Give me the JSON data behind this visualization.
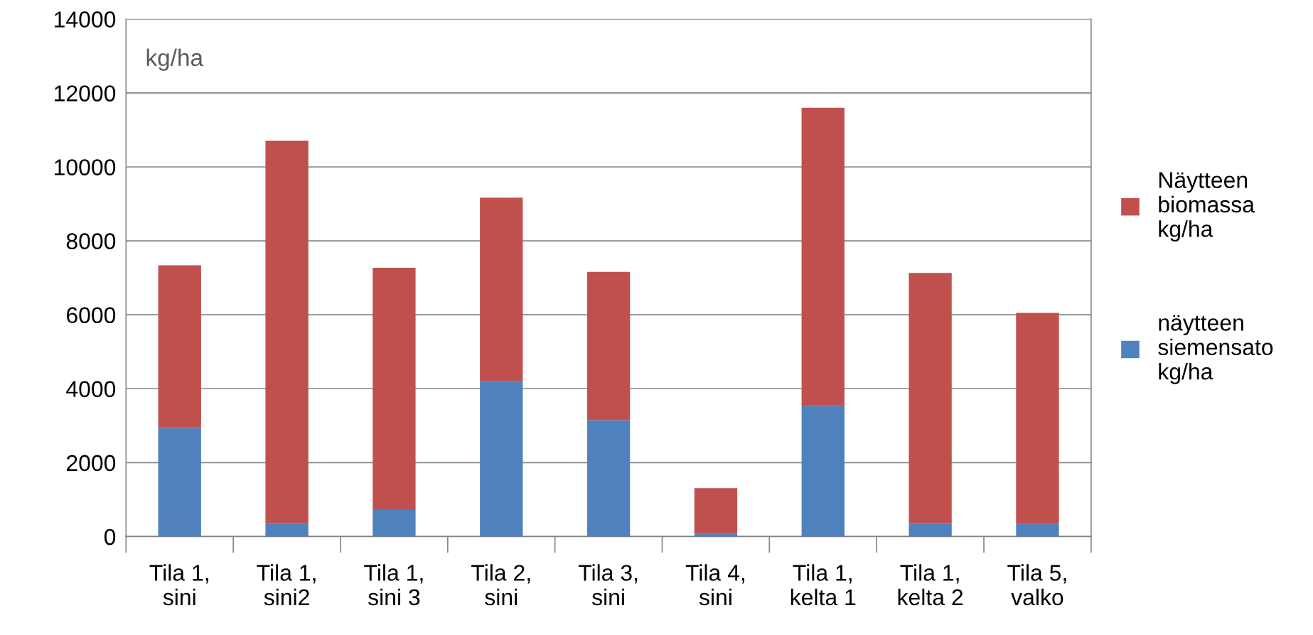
{
  "chart_data": {
    "type": "bar",
    "stacked": true,
    "categories": [
      "Tila 1,\nsini",
      "Tila 1,\nsini2",
      "Tila 1,\nsini 3",
      "Tila 2,\nsini",
      "Tila 3,\nsini",
      "Tila 4,\nsini",
      "Tila 1,\nkelta 1",
      "Tila 1,\nkelta 2",
      "Tila 5,\nvalko"
    ],
    "series": [
      {
        "name": "näytteen\nsiemensato\nkg/ha",
        "color": "#4f81bd",
        "values": [
          2940,
          360,
          720,
          4210,
          3150,
          90,
          3530,
          360,
          340
        ]
      },
      {
        "name": "Näytteen\nbiomassa\nkg/ha",
        "color": "#c0504d",
        "values": [
          4400,
          10350,
          6550,
          4960,
          4010,
          1220,
          8070,
          6770,
          5710
        ]
      }
    ],
    "ylim": [
      0,
      14000
    ],
    "yticks": [
      0,
      2000,
      4000,
      6000,
      8000,
      10000,
      12000,
      14000
    ],
    "grid": "y",
    "legend": "right",
    "annotations": [
      "kg/ha"
    ]
  }
}
